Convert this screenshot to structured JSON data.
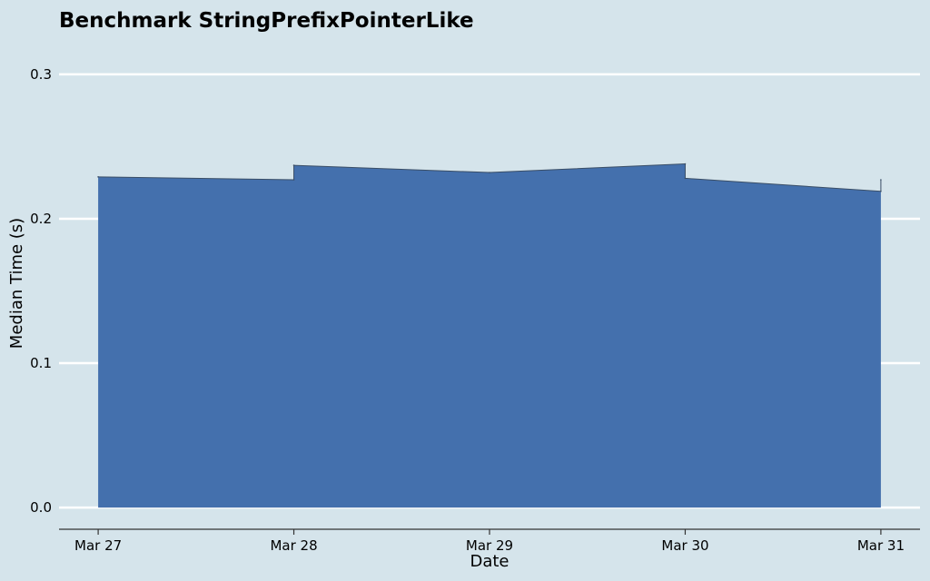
{
  "chart_data": {
    "type": "area",
    "title": "Benchmark StringPrefixPointerLike",
    "xlabel": "Date",
    "ylabel": "Median Time (s)",
    "x_ticks": [
      "Mar 27",
      "Mar 28",
      "Mar 29",
      "Mar 30",
      "Mar 31"
    ],
    "y_ticks": [
      "0.0",
      "0.1",
      "0.2",
      "0.3"
    ],
    "y_tick_values": [
      0.0,
      0.1,
      0.2,
      0.3
    ],
    "xlim": [
      -0.2,
      4.2
    ],
    "ylim": [
      -0.015,
      0.315
    ],
    "grid": true,
    "series": [
      {
        "points": [
          {
            "x": 0.0,
            "y": 0.229
          },
          {
            "x": 1.0,
            "y": 0.227
          },
          {
            "x": 1.0,
            "y": 0.237
          },
          {
            "x": 2.0,
            "y": 0.232
          },
          {
            "x": 3.0,
            "y": 0.238
          },
          {
            "x": 3.0,
            "y": 0.228
          },
          {
            "x": 4.0,
            "y": 0.219
          },
          {
            "x": 4.0,
            "y": 0.227
          }
        ]
      }
    ],
    "colors": {
      "background": "#d5e4eb",
      "fill": "#4470ad",
      "edge": "#3a4e66",
      "grid": "#ffffff",
      "axis": "#333333"
    }
  }
}
